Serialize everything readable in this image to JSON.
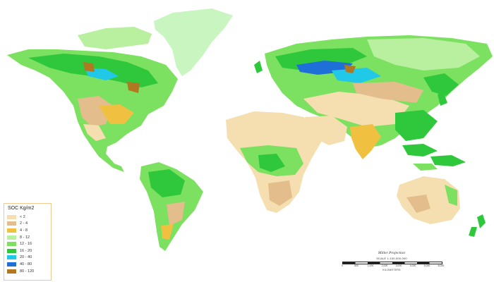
{
  "legend": {
    "title": "SOC Kg/m2",
    "classes": [
      {
        "label": "< 2",
        "color": "#f5dfb0"
      },
      {
        "label": "2 - 4",
        "color": "#e3be8c"
      },
      {
        "label": "4 - 8",
        "color": "#f0c040"
      },
      {
        "label": "8 - 12",
        "color": "#b8f0a0"
      },
      {
        "label": "12 - 16",
        "color": "#7ce060"
      },
      {
        "label": "16 - 20",
        "color": "#2fc83c"
      },
      {
        "label": "20 - 40",
        "color": "#22c8e8"
      },
      {
        "label": "40 - 80",
        "color": "#1f6fd8"
      },
      {
        "label": "80 - 120",
        "color": "#b07820"
      }
    ]
  },
  "scale": {
    "projection": "Miller Projection",
    "scale_text": "SCALE 1:100,000,000",
    "ticks": [
      "0",
      "500",
      "1,000",
      "2,000",
      "3,000",
      "4,000",
      "5,000",
      "6,000"
    ],
    "unit": "KILOMETERS"
  }
}
